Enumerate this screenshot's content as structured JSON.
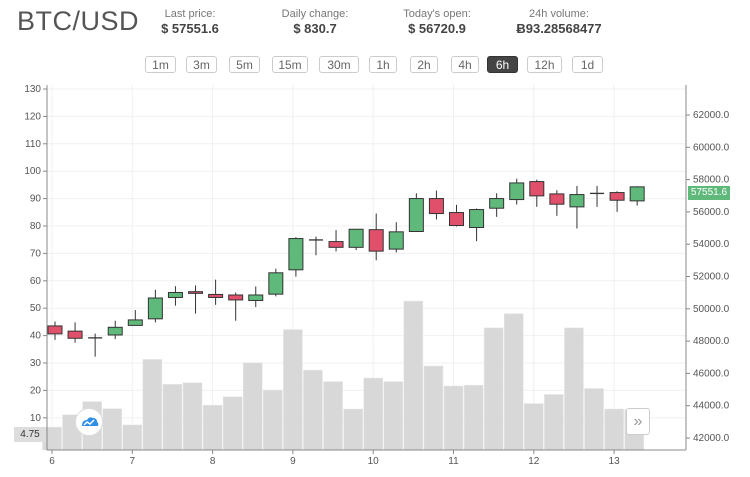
{
  "header": {
    "pair": "BTC/USD",
    "stats": [
      {
        "label": "Last price:",
        "value": "$ 57551.6"
      },
      {
        "label": "Daily change:",
        "value": "$ 830.7"
      },
      {
        "label": "Today's open:",
        "value": "$ 56720.9"
      },
      {
        "label": "24h volume:",
        "value": "Ƀ93.28568477"
      }
    ]
  },
  "intervals": {
    "options": [
      "1m",
      "3m",
      "5m",
      "15m",
      "30m",
      "1h",
      "2h",
      "4h",
      "6h",
      "12h",
      "1d"
    ],
    "selected": "6h"
  },
  "overlay": {
    "crosshair_value": "4.75",
    "last_price_label": "57551.6",
    "scroll_forward_icon": "double-chevron-right-icon",
    "logo_icon": "cloud-chart-logo-icon"
  },
  "colors": {
    "up": "#5fb97a",
    "down": "#e0506a",
    "volume": "#d8d8d8"
  },
  "chart_data": {
    "type": "candlestick",
    "x_ticks": [
      "6",
      "7",
      "8",
      "9",
      "10",
      "11",
      "12",
      "13"
    ],
    "left_axis": {
      "ticks": [
        "10",
        "20",
        "30",
        "40",
        "50",
        "60",
        "70",
        "80",
        "90",
        "100",
        "110",
        "120",
        "130"
      ],
      "range": [
        0,
        131
      ]
    },
    "right_axis": {
      "ticks": [
        "42000.0",
        "44000.0",
        "46000.0",
        "48000.0",
        "50000.0",
        "52000.0",
        "54000.0",
        "56000.0",
        "58000.0",
        "60000.0",
        "62000.0"
      ],
      "range": [
        41500,
        63000
      ]
    },
    "grid": true,
    "candles": [
      {
        "t": 6.0,
        "o": 48939,
        "h": 49210,
        "l": 48074,
        "c": 48447
      },
      {
        "t": 6.25,
        "o": 48617,
        "h": 49159,
        "l": 47904,
        "c": 48175
      },
      {
        "t": 6.5,
        "o": 48200,
        "h": 48464,
        "l": 47039,
        "c": 48185
      },
      {
        "t": 6.75,
        "o": 48379,
        "h": 49261,
        "l": 48124,
        "c": 48854
      },
      {
        "t": 7.0,
        "o": 48972,
        "h": 49922,
        "l": 48972,
        "c": 49312
      },
      {
        "t": 7.25,
        "o": 49379,
        "h": 51177,
        "l": 49159,
        "c": 50668
      },
      {
        "t": 7.5,
        "o": 50702,
        "h": 51398,
        "l": 50193,
        "c": 51008
      },
      {
        "t": 7.75,
        "o": 51059,
        "h": 51449,
        "l": 49702,
        "c": 50957
      },
      {
        "t": 8.0,
        "o": 50889,
        "h": 51805,
        "l": 50244,
        "c": 50702
      },
      {
        "t": 8.25,
        "o": 50855,
        "h": 51008,
        "l": 49261,
        "c": 50550
      },
      {
        "t": 8.5,
        "o": 50516,
        "h": 51381,
        "l": 50108,
        "c": 50855
      },
      {
        "t": 8.75,
        "o": 50906,
        "h": 52483,
        "l": 50770,
        "c": 52229
      },
      {
        "t": 9.0,
        "o": 52415,
        "h": 54434,
        "l": 51991,
        "c": 54349
      },
      {
        "t": 9.25,
        "o": 54247,
        "h": 54468,
        "l": 53314,
        "c": 54264
      },
      {
        "t": 9.5,
        "o": 54162,
        "h": 54875,
        "l": 53551,
        "c": 53806
      },
      {
        "t": 9.75,
        "o": 53806,
        "h": 54926,
        "l": 53636,
        "c": 54926
      },
      {
        "t": 10.0,
        "o": 54900,
        "h": 55900,
        "l": 53000,
        "c": 53570
      },
      {
        "t": 10.25,
        "o": 53695,
        "h": 55363,
        "l": 53489,
        "c": 54766
      },
      {
        "t": 10.5,
        "o": 54786,
        "h": 57155,
        "l": 54786,
        "c": 56826
      },
      {
        "t": 10.75,
        "o": 56826,
        "h": 57320,
        "l": 55528,
        "c": 55899
      },
      {
        "t": 11.0,
        "o": 55960,
        "h": 56434,
        "l": 55095,
        "c": 55157
      },
      {
        "t": 11.25,
        "o": 55034,
        "h": 56208,
        "l": 54189,
        "c": 56146
      },
      {
        "t": 11.5,
        "o": 56228,
        "h": 57155,
        "l": 55693,
        "c": 56826
      },
      {
        "t": 11.75,
        "o": 56764,
        "h": 58062,
        "l": 56455,
        "c": 57794
      },
      {
        "t": 12.0,
        "o": 57876,
        "h": 58000,
        "l": 56311,
        "c": 56991
      },
      {
        "t": 12.25,
        "o": 57114,
        "h": 57341,
        "l": 55755,
        "c": 56476
      },
      {
        "t": 12.5,
        "o": 56311,
        "h": 57609,
        "l": 54972,
        "c": 57073
      },
      {
        "t": 12.75,
        "o": 57135,
        "h": 57609,
        "l": 56311,
        "c": 57145
      },
      {
        "t": 13.0,
        "o": 57197,
        "h": 57279,
        "l": 56002,
        "c": 56723
      },
      {
        "t": 13.25,
        "o": 56682,
        "h": 57588,
        "l": 56393,
        "c": 57551.6
      }
    ],
    "volumes": [
      6.6,
      11.1,
      15.9,
      13.3,
      7.4,
      31.3,
      22.2,
      22.8,
      14.6,
      17.7,
      30.1,
      20.1,
      42.2,
      27.4,
      23.2,
      13.2,
      24.5,
      23.2,
      52.6,
      28.9,
      21.6,
      21.9,
      42.8,
      48.0,
      15.2,
      18.5,
      42.8,
      20.7,
      13.2,
      13.0
    ]
  }
}
